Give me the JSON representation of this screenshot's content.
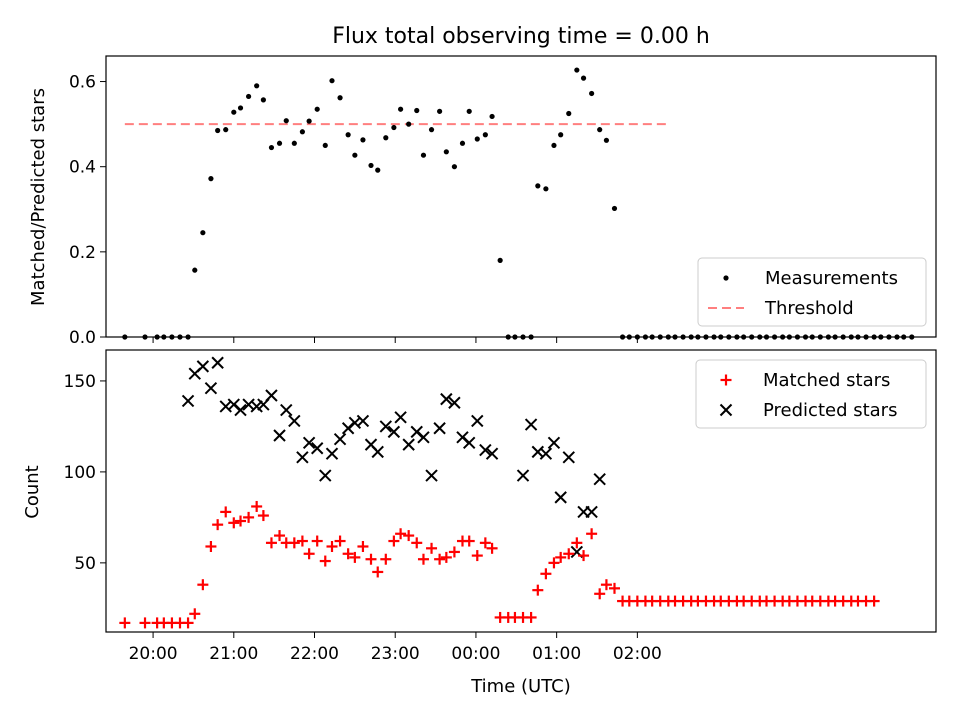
{
  "chart_data": [
    {
      "type": "scatter",
      "title": "Flux total observing time = 0.00 h",
      "xlabel": "",
      "ylabel": "Matched/Predicted stars",
      "ylim": [
        0,
        0.66
      ],
      "yticks": [
        "0.0",
        "0.2",
        "0.4",
        "0.6"
      ],
      "legend_position": "lower right",
      "series": [
        {
          "name": "Measurements",
          "kind": "scatter",
          "color": "#000000",
          "marker": "dot",
          "x": [
            "19:39",
            "19:54",
            "20:03",
            "20:08",
            "20:14",
            "20:20",
            "20:26",
            "20:31",
            "20:37",
            "20:43",
            "20:48",
            "20:54",
            "21:00",
            "21:05",
            "21:11",
            "21:17",
            "21:22",
            "21:28",
            "21:34",
            "21:39",
            "21:45",
            "21:51",
            "21:56",
            "22:02",
            "22:08",
            "22:13",
            "22:19",
            "22:25",
            "22:30",
            "22:36",
            "22:42",
            "22:47",
            "22:53",
            "22:59",
            "23:04",
            "23:10",
            "23:16",
            "23:21",
            "23:27",
            "23:33",
            "23:38",
            "23:44",
            "23:50",
            "23:55",
            "24:01",
            "24:07",
            "24:12",
            "24:18",
            "24:24",
            "24:29",
            "24:35",
            "24:41",
            "24:46",
            "24:52",
            "24:58",
            "25:03",
            "25:09",
            "25:15",
            "25:20",
            "25:26",
            "25:32",
            "25:37",
            "25:43",
            "25:49",
            "25:54",
            "26:00",
            "26:06",
            "26:11",
            "26:17",
            "26:23",
            "26:28",
            "26:34",
            "26:40"
          ],
          "y": [
            0,
            0,
            0,
            0,
            0,
            0,
            0,
            0.157,
            0.245,
            0.372,
            0.485,
            0.487,
            0.528,
            0.538,
            0.565,
            0.59,
            0.557,
            0.445,
            0.455,
            0.508,
            0.455,
            0.482,
            0.507,
            0.535,
            0.45,
            0.602,
            0.562,
            0.475,
            0.427,
            0.463,
            0.403,
            0.392,
            0.468,
            0.492,
            0.535,
            0.5,
            0.532,
            0.427,
            0.487,
            0.53,
            0.435,
            0.4,
            0.455,
            0.53,
            0.465,
            0.475,
            0.518,
            0.18,
            0,
            0,
            0,
            0,
            0.355,
            0.348,
            0.45,
            0.475,
            0.525,
            0.627,
            0.608,
            0.572,
            0.487,
            0.462,
            0.302,
            0,
            0,
            0,
            0,
            0,
            0,
            0,
            0,
            0,
            0
          ],
          "x_extra": [
            "26:45",
            "26:51",
            "26:57",
            "27:02",
            "27:08",
            "27:14",
            "27:19",
            "27:25",
            "27:31",
            "27:36",
            "27:42",
            "27:48",
            "27:53",
            "27:59",
            "28:05",
            "28:10",
            "28:16",
            "28:22",
            "28:27",
            "28:33",
            "28:39",
            "28:44",
            "28:50",
            "28:56",
            "29:01",
            "29:07",
            "29:13",
            "29:18",
            "29:24"
          ],
          "y_extra": [
            0,
            0,
            0,
            0,
            0,
            0,
            0,
            0,
            0,
            0,
            0,
            0,
            0,
            0,
            0,
            0,
            0,
            0,
            0,
            0,
            0,
            0,
            0,
            0,
            0,
            0,
            0,
            0,
            0
          ]
        },
        {
          "name": "Threshold",
          "kind": "dashed-line",
          "color": "#ff7f7f",
          "x": [
            "19:39",
            "26:23"
          ],
          "y": [
            0.5,
            0.5
          ]
        }
      ]
    },
    {
      "type": "scatter",
      "title": "",
      "xlabel": "Time (UTC)",
      "ylabel": "Count",
      "ylim": [
        12,
        167
      ],
      "yticks": [
        "50",
        "100",
        "150"
      ],
      "xticks": [
        "20:00",
        "21:00",
        "22:00",
        "23:00",
        "00:00",
        "01:00",
        "02:00"
      ],
      "legend_position": "upper right",
      "series": [
        {
          "name": "Matched stars",
          "kind": "plus",
          "color": "#ff0000",
          "x": [
            "19:39",
            "19:54",
            "20:03",
            "20:08",
            "20:14",
            "20:20",
            "20:26",
            "20:31",
            "20:37",
            "20:43",
            "20:48",
            "20:54",
            "21:00",
            "21:05",
            "21:11",
            "21:17",
            "21:22",
            "21:28",
            "21:34",
            "21:39",
            "21:45",
            "21:51",
            "21:56",
            "22:02",
            "22:08",
            "22:13",
            "22:19",
            "22:25",
            "22:30",
            "22:36",
            "22:42",
            "22:47",
            "22:53",
            "22:59",
            "23:04",
            "23:10",
            "23:16",
            "23:21",
            "23:27",
            "23:33",
            "23:38",
            "23:44",
            "23:50",
            "23:55",
            "24:01",
            "24:07",
            "24:12",
            "24:18",
            "24:24",
            "24:29",
            "24:35",
            "24:41",
            "24:46",
            "24:52",
            "24:58",
            "25:03",
            "25:09",
            "25:15",
            "25:20",
            "25:26",
            "25:32",
            "25:37",
            "25:43",
            "25:49",
            "25:54",
            "26:00",
            "26:06",
            "26:11",
            "26:17",
            "26:23",
            "26:28",
            "26:34",
            "26:40",
            "26:45",
            "26:51",
            "26:57",
            "27:02",
            "27:08",
            "27:14",
            "27:19",
            "27:25",
            "27:31",
            "27:36",
            "27:42",
            "27:48",
            "27:53",
            "27:59",
            "28:05",
            "28:10",
            "28:16",
            "28:22",
            "28:27",
            "28:33",
            "28:39",
            "28:44",
            "28:50",
            "28:56"
          ],
          "y": [
            17,
            17,
            17,
            17,
            17,
            17,
            17,
            22,
            38,
            59,
            71,
            78,
            72,
            73,
            75,
            81,
            76,
            61,
            65,
            61,
            61,
            62,
            55,
            62,
            51,
            59,
            62,
            55,
            53,
            59,
            52,
            45,
            52,
            62,
            66,
            65,
            61,
            52,
            58,
            52,
            53,
            56,
            62,
            62,
            54,
            61,
            58,
            20,
            20,
            20,
            20,
            20,
            35,
            44,
            50,
            53,
            55,
            61,
            54,
            66,
            33,
            38,
            36,
            29,
            29,
            29,
            29,
            29,
            29,
            29,
            29,
            29,
            29,
            29,
            29,
            29,
            29,
            29,
            29,
            29,
            29,
            29,
            29,
            29,
            29,
            29,
            29,
            29,
            29,
            29,
            29,
            29,
            29,
            29,
            29,
            29,
            29
          ]
        },
        {
          "name": "Predicted stars",
          "kind": "x",
          "color": "#000000",
          "x": [
            "20:26",
            "20:31",
            "20:37",
            "20:43",
            "20:48",
            "20:54",
            "21:00",
            "21:05",
            "21:11",
            "21:17",
            "21:22",
            "21:28",
            "21:34",
            "21:39",
            "21:45",
            "21:51",
            "21:56",
            "22:02",
            "22:08",
            "22:13",
            "22:19",
            "22:25",
            "22:30",
            "22:36",
            "22:42",
            "22:47",
            "22:53",
            "22:59",
            "23:04",
            "23:10",
            "23:16",
            "23:21",
            "23:27",
            "23:33",
            "23:38",
            "23:44",
            "23:50",
            "23:55",
            "24:01",
            "24:07",
            "24:12",
            "24:18",
            "24:24",
            "24:29",
            "24:35",
            "24:41",
            "24:46",
            "24:52",
            "24:58",
            "25:03",
            "25:09",
            "25:15",
            "25:20",
            "25:26",
            "25:32",
            "25:37",
            "25:43",
            "25:49",
            "25:54",
            "26:00",
            "26:06",
            "26:11",
            "26:17"
          ],
          "y": [
            139,
            154,
            158,
            146,
            160,
            136,
            137,
            134,
            137,
            136,
            137,
            142,
            120,
            134,
            128,
            108,
            116,
            113,
            98,
            110,
            118,
            124,
            127,
            128,
            115,
            111,
            125,
            122,
            130,
            115,
            122,
            119,
            98,
            124,
            140,
            138,
            119,
            116,
            128,
            112,
            110,
            null,
            null,
            null,
            98,
            126,
            111,
            110,
            116,
            86,
            108,
            56,
            78,
            78,
            96,
            null,
            null,
            null,
            null,
            null,
            null,
            null,
            null
          ]
        }
      ]
    }
  ]
}
